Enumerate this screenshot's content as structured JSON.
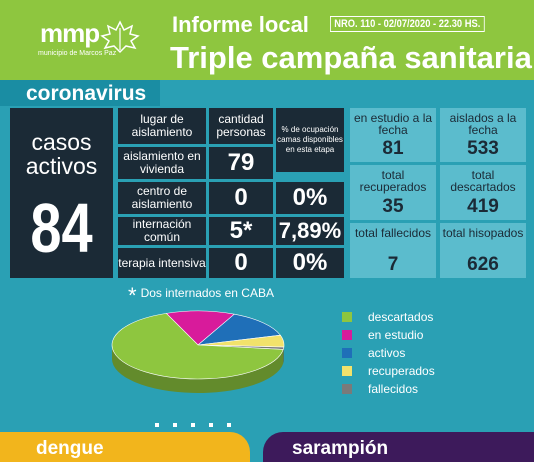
{
  "header": {
    "logo_text": "mmp",
    "logo_sub": "municipio de Marcos Paz",
    "title": "Informe local",
    "report_number": "NRO. 110 - 02/07/2020 - 22.30 HS.",
    "subtitle": "Triple campaña sanitaria"
  },
  "section": {
    "coronavirus": "coronavirus"
  },
  "casos": {
    "label_line1": "casos",
    "label_line2": "activos",
    "value": "84"
  },
  "table": {
    "headers": {
      "lugar": "lugar de aislamiento",
      "cantidad": "cantidad personas",
      "ocupacion": "% de ocupación camas disponibles en esta etapa"
    },
    "rows": [
      {
        "label": "aislamiento en vivienda",
        "cantidad": "79",
        "ocupacion": ""
      },
      {
        "label": "centro de aislamiento",
        "cantidad": "0",
        "ocupacion": "0%"
      },
      {
        "label": "internación común",
        "cantidad": "5*",
        "ocupacion": "7,89%"
      },
      {
        "label": "terapia intensiva",
        "cantidad": "0",
        "ocupacion": "0%"
      }
    ]
  },
  "stats": [
    {
      "label": "en estudio a la fecha",
      "value": "81"
    },
    {
      "label": "aislados a la fecha",
      "value": "533"
    },
    {
      "label": "total recuperados",
      "value": "35"
    },
    {
      "label": "total descartados",
      "value": "419"
    },
    {
      "label": "total fallecidos",
      "value": "7"
    },
    {
      "label": "total hisopados",
      "value": "626"
    }
  ],
  "note": {
    "star": "*",
    "text": "Dos internados en CABA"
  },
  "chart_data": {
    "type": "pie",
    "categories": [
      "descartados",
      "en estudio",
      "activos",
      "recuperados",
      "fallecidos"
    ],
    "values": [
      419,
      81,
      84,
      35,
      7
    ],
    "colors": [
      "#8ec63f",
      "#d81b9b",
      "#1f6fb8",
      "#f2e26b",
      "#7a7a7a"
    ],
    "title": "",
    "legend": "right"
  },
  "footer": {
    "dengue": "dengue",
    "sarampion": "sarampión"
  },
  "colors": {
    "header_green": "#8ec63f",
    "background_teal": "#2aa0b4",
    "dark_cell": "#1b2a36",
    "stat_cell": "#5bbccd",
    "dengue_yellow": "#f2b51c",
    "sarampion_purple": "#3d1a5b"
  },
  "icons": {
    "logo": "leaf-icon"
  }
}
